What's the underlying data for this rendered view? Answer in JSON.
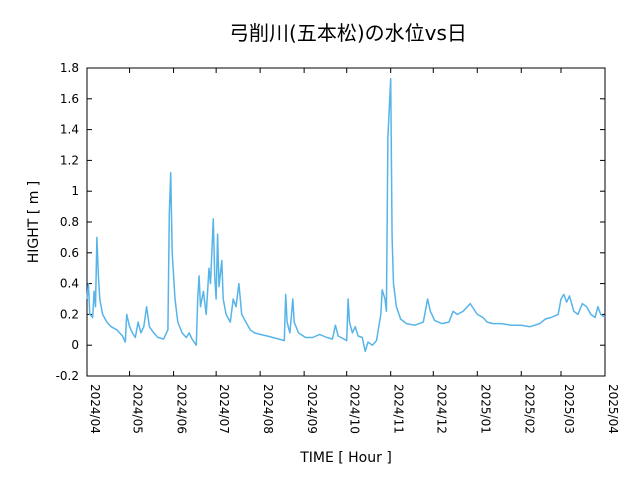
{
  "chart_data": {
    "type": "line",
    "title": "弓削川(五本松)の水位vs日",
    "xlabel": "TIME [ Hour ]",
    "ylabel": "HIGHT [ m ]",
    "xlim": [
      "2024-04-01",
      "2025-04-01"
    ],
    "ylim": [
      -0.2,
      1.8
    ],
    "y_ticks": [
      -0.2,
      0,
      0.2,
      0.4,
      0.6,
      0.8,
      1,
      1.2,
      1.4,
      1.6,
      1.8
    ],
    "y_tick_labels": [
      "-0.2",
      "0",
      "0.2",
      "0.4",
      "0.6",
      "0.8",
      "1",
      "1.2",
      "1.4",
      "1.6",
      "1.8"
    ],
    "x_ticks": [
      "2024-04-01",
      "2024-05-01",
      "2024-06-01",
      "2024-07-01",
      "2024-08-01",
      "2024-09-01",
      "2024-10-01",
      "2024-11-01",
      "2024-12-01",
      "2025-01-01",
      "2025-02-01",
      "2025-03-01",
      "2025-04-01"
    ],
    "x_tick_labels": [
      "2024/04",
      "2024/05",
      "2024/06",
      "2024/07",
      "2024/08",
      "2024/09",
      "2024/10",
      "2024/11",
      "2024/12",
      "2025/01",
      "2025/02",
      "2025/03",
      "2025/04"
    ],
    "grid": false,
    "line_color": "#56b4e9",
    "series": [
      {
        "points": [
          [
            "2024-04-01",
            0.3
          ],
          [
            "2024-04-02",
            0.4
          ],
          [
            "2024-04-03",
            0.2
          ],
          [
            "2024-04-05",
            0.18
          ],
          [
            "2024-04-06",
            0.35
          ],
          [
            "2024-04-07",
            0.25
          ],
          [
            "2024-04-08",
            0.7
          ],
          [
            "2024-04-09",
            0.45
          ],
          [
            "2024-04-10",
            0.3
          ],
          [
            "2024-04-12",
            0.2
          ],
          [
            "2024-04-15",
            0.15
          ],
          [
            "2024-04-18",
            0.12
          ],
          [
            "2024-04-22",
            0.1
          ],
          [
            "2024-04-26",
            0.06
          ],
          [
            "2024-04-28",
            0.02
          ],
          [
            "2024-04-29",
            0.2
          ],
          [
            "2024-05-01",
            0.12
          ],
          [
            "2024-05-03",
            0.08
          ],
          [
            "2024-05-05",
            0.05
          ],
          [
            "2024-05-07",
            0.15
          ],
          [
            "2024-05-09",
            0.08
          ],
          [
            "2024-05-11",
            0.12
          ],
          [
            "2024-05-13",
            0.25
          ],
          [
            "2024-05-15",
            0.12
          ],
          [
            "2024-05-18",
            0.08
          ],
          [
            "2024-05-21",
            0.05
          ],
          [
            "2024-05-25",
            0.04
          ],
          [
            "2024-05-28",
            0.1
          ],
          [
            "2024-05-29",
            0.85
          ],
          [
            "2024-05-30",
            1.12
          ],
          [
            "2024-05-31",
            0.6
          ],
          [
            "2024-06-02",
            0.3
          ],
          [
            "2024-06-04",
            0.15
          ],
          [
            "2024-06-07",
            0.08
          ],
          [
            "2024-06-10",
            0.05
          ],
          [
            "2024-06-12",
            0.08
          ],
          [
            "2024-06-14",
            0.04
          ],
          [
            "2024-06-17",
            0.0
          ],
          [
            "2024-06-18",
            0.3
          ],
          [
            "2024-06-19",
            0.45
          ],
          [
            "2024-06-20",
            0.25
          ],
          [
            "2024-06-22",
            0.35
          ],
          [
            "2024-06-24",
            0.2
          ],
          [
            "2024-06-26",
            0.5
          ],
          [
            "2024-06-27",
            0.4
          ],
          [
            "2024-06-29",
            0.82
          ],
          [
            "2024-06-30",
            0.45
          ],
          [
            "2024-07-01",
            0.3
          ],
          [
            "2024-07-02",
            0.72
          ],
          [
            "2024-07-03",
            0.38
          ],
          [
            "2024-07-05",
            0.55
          ],
          [
            "2024-07-06",
            0.3
          ],
          [
            "2024-07-08",
            0.2
          ],
          [
            "2024-07-11",
            0.15
          ],
          [
            "2024-07-13",
            0.3
          ],
          [
            "2024-07-15",
            0.25
          ],
          [
            "2024-07-17",
            0.4
          ],
          [
            "2024-07-19",
            0.2
          ],
          [
            "2024-07-22",
            0.15
          ],
          [
            "2024-07-25",
            0.1
          ],
          [
            "2024-07-28",
            0.08
          ],
          [
            "2024-08-01",
            0.07
          ],
          [
            "2024-08-06",
            0.06
          ],
          [
            "2024-08-10",
            0.05
          ],
          [
            "2024-08-14",
            0.04
          ],
          [
            "2024-08-18",
            0.03
          ],
          [
            "2024-08-19",
            0.33
          ],
          [
            "2024-08-20",
            0.15
          ],
          [
            "2024-08-22",
            0.08
          ],
          [
            "2024-08-24",
            0.3
          ],
          [
            "2024-08-25",
            0.15
          ],
          [
            "2024-08-28",
            0.08
          ],
          [
            "2024-09-02",
            0.05
          ],
          [
            "2024-09-07",
            0.05
          ],
          [
            "2024-09-12",
            0.07
          ],
          [
            "2024-09-17",
            0.05
          ],
          [
            "2024-09-21",
            0.04
          ],
          [
            "2024-09-23",
            0.13
          ],
          [
            "2024-09-25",
            0.06
          ],
          [
            "2024-09-29",
            0.04
          ],
          [
            "2024-10-01",
            0.03
          ],
          [
            "2024-10-02",
            0.3
          ],
          [
            "2024-10-03",
            0.15
          ],
          [
            "2024-10-05",
            0.08
          ],
          [
            "2024-10-07",
            0.12
          ],
          [
            "2024-10-09",
            0.06
          ],
          [
            "2024-10-12",
            0.05
          ],
          [
            "2024-10-14",
            -0.04
          ],
          [
            "2024-10-16",
            0.02
          ],
          [
            "2024-10-19",
            0.0
          ],
          [
            "2024-10-22",
            0.03
          ],
          [
            "2024-10-25",
            0.2
          ],
          [
            "2024-10-26",
            0.36
          ],
          [
            "2024-10-28",
            0.3
          ],
          [
            "2024-10-29",
            0.22
          ],
          [
            "2024-10-30",
            1.35
          ],
          [
            "2024-11-01",
            1.73
          ],
          [
            "2024-11-02",
            0.7
          ],
          [
            "2024-11-03",
            0.4
          ],
          [
            "2024-11-05",
            0.25
          ],
          [
            "2024-11-08",
            0.17
          ],
          [
            "2024-11-12",
            0.14
          ],
          [
            "2024-11-18",
            0.13
          ],
          [
            "2024-11-24",
            0.15
          ],
          [
            "2024-11-27",
            0.3
          ],
          [
            "2024-11-29",
            0.22
          ],
          [
            "2024-12-02",
            0.16
          ],
          [
            "2024-12-07",
            0.14
          ],
          [
            "2024-12-12",
            0.15
          ],
          [
            "2024-12-15",
            0.22
          ],
          [
            "2024-12-18",
            0.2
          ],
          [
            "2024-12-22",
            0.22
          ],
          [
            "2024-12-27",
            0.27
          ],
          [
            "2025-01-01",
            0.2
          ],
          [
            "2025-01-05",
            0.18
          ],
          [
            "2025-01-08",
            0.15
          ],
          [
            "2025-01-12",
            0.14
          ],
          [
            "2025-01-18",
            0.14
          ],
          [
            "2025-01-25",
            0.13
          ],
          [
            "2025-02-01",
            0.13
          ],
          [
            "2025-02-07",
            0.12
          ],
          [
            "2025-02-14",
            0.14
          ],
          [
            "2025-02-18",
            0.17
          ],
          [
            "2025-02-22",
            0.18
          ],
          [
            "2025-02-27",
            0.2
          ],
          [
            "2025-03-01",
            0.3
          ],
          [
            "2025-03-03",
            0.33
          ],
          [
            "2025-03-05",
            0.28
          ],
          [
            "2025-03-07",
            0.32
          ],
          [
            "2025-03-10",
            0.22
          ],
          [
            "2025-03-13",
            0.2
          ],
          [
            "2025-03-16",
            0.27
          ],
          [
            "2025-03-19",
            0.25
          ],
          [
            "2025-03-22",
            0.2
          ],
          [
            "2025-03-25",
            0.18
          ],
          [
            "2025-03-27",
            0.25
          ],
          [
            "2025-03-29",
            0.2
          ],
          [
            "2025-04-01",
            0.18
          ]
        ]
      }
    ]
  }
}
